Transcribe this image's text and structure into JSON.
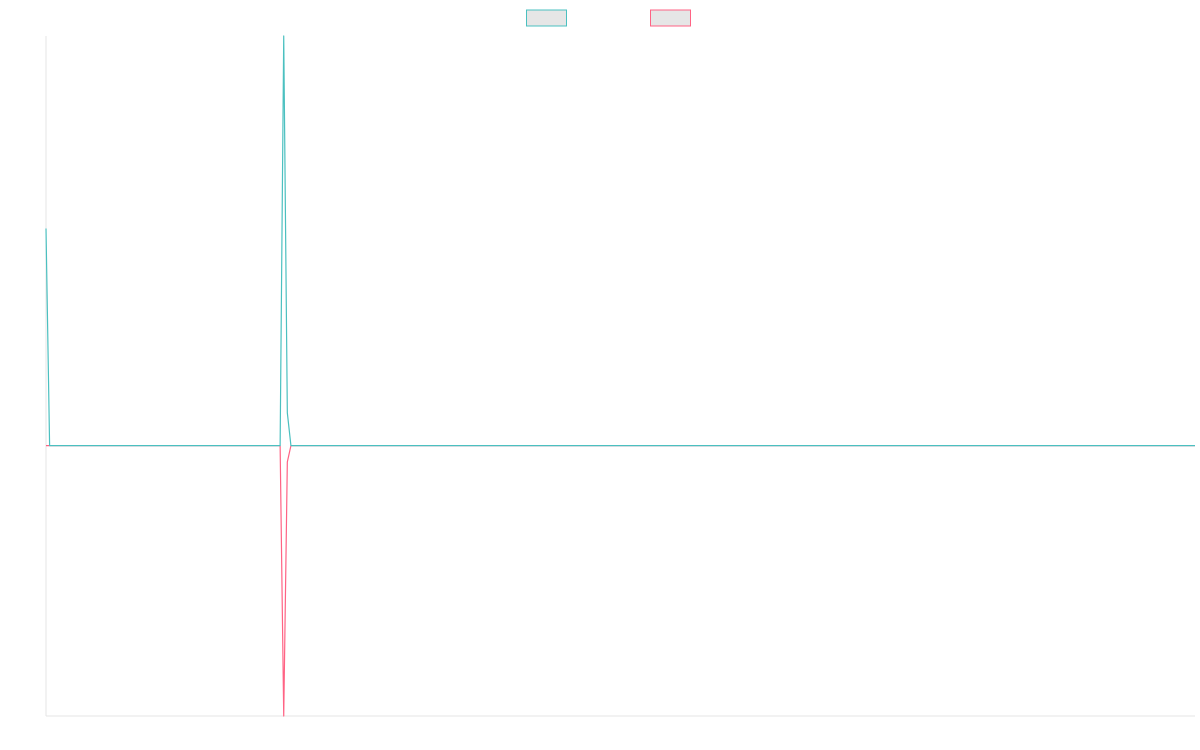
{
  "chart_data": {
    "type": "line",
    "x": [
      0,
      1,
      12,
      65,
      66,
      67,
      68,
      319
    ],
    "xlim": [
      0,
      319
    ],
    "ylim": [
      -0.66,
      1
    ],
    "grid": false,
    "legend": "top",
    "series": [
      {
        "color": "#4bc0c0",
        "values": [
          0.53,
          0,
          0,
          0,
          1,
          0.08,
          0,
          0
        ]
      },
      {
        "color": "#ff6384",
        "values": [
          0,
          0,
          0,
          0,
          -0.66,
          -0.04,
          0,
          0
        ]
      }
    ]
  }
}
